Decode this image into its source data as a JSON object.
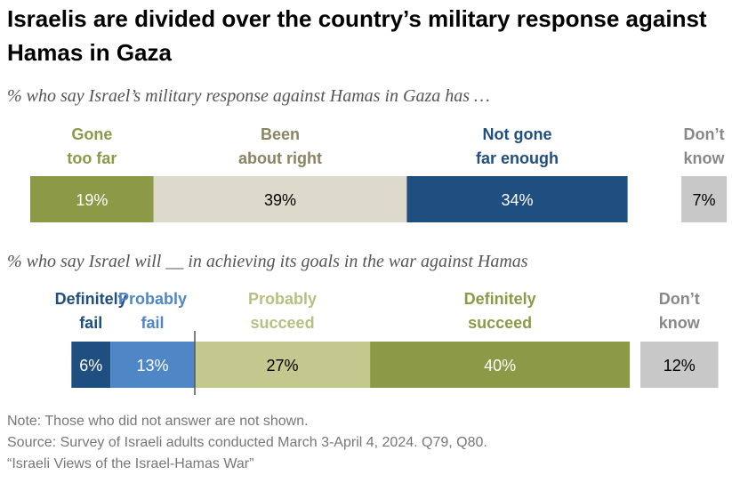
{
  "title": "Israelis are divided over the country’s military response against Hamas in Gaza",
  "notes": {
    "note": "Note: Those who did not answer are not shown.",
    "source": "Source: Survey of Israeli adults conducted March 3-April 4, 2024. Q79, Q80.",
    "report": "“Israeli Views of the Israel-Hamas War”"
  },
  "chart_data": [
    {
      "type": "bar",
      "orientation": "horizontal-stacked",
      "subtitle": "% who say Israel’s military response against Hamas in Gaza has …",
      "series": [
        {
          "name": "Gone too far",
          "label_lines": [
            "Gone",
            "too far"
          ],
          "value": 19,
          "display": "19%",
          "color": "#8c9a48",
          "label_color": "#8c9a48",
          "text_color": "#ffffff"
        },
        {
          "name": "Been about right",
          "label_lines": [
            "Been",
            "about right"
          ],
          "value": 39,
          "display": "39%",
          "color": "#ddd9cb",
          "label_color": "#8a8462",
          "text_color": "#000000"
        },
        {
          "name": "Not gone far enough",
          "label_lines": [
            "Not gone",
            "far enough"
          ],
          "value": 34,
          "display": "34%",
          "color": "#1f4e80",
          "label_color": "#1f4e80",
          "text_color": "#ffffff"
        }
      ],
      "separate": {
        "name": "Don’t know",
        "label_lines": [
          "Don’t",
          "know"
        ],
        "value": 7,
        "display": "7%",
        "color": "#c8c8c8",
        "label_color": "#888888",
        "text_color": "#000000"
      }
    },
    {
      "type": "bar",
      "orientation": "horizontal-diverging",
      "subtitle": "% who say Israel will __ in achieving its goals in the war against Hamas",
      "series": [
        {
          "name": "Definitely fail",
          "label_lines": [
            "Definitely",
            "fail"
          ],
          "value": 6,
          "display": "6%",
          "color": "#1f4e80",
          "label_color": "#1f4e80",
          "text_color": "#ffffff",
          "side": "negative"
        },
        {
          "name": "Probably fail",
          "label_lines": [
            "Probably",
            "fail"
          ],
          "value": 13,
          "display": "13%",
          "color": "#4f86c6",
          "label_color": "#4f86c6",
          "text_color": "#ffffff",
          "side": "negative"
        },
        {
          "name": "Probably succeed",
          "label_lines": [
            "Probably",
            "succeed"
          ],
          "value": 27,
          "display": "27%",
          "color": "#c3c88e",
          "label_color": "#b9bf80",
          "text_color": "#000000",
          "side": "positive"
        },
        {
          "name": "Definitely succeed",
          "label_lines": [
            "Definitely",
            "succeed"
          ],
          "value": 40,
          "display": "40%",
          "color": "#8c9a48",
          "label_color": "#8c9a48",
          "text_color": "#ffffff",
          "side": "positive"
        }
      ],
      "separate": {
        "name": "Don’t know",
        "label_lines": [
          "Don’t",
          "know"
        ],
        "value": 12,
        "display": "12%",
        "color": "#c8c8c8",
        "label_color": "#888888",
        "text_color": "#000000"
      }
    }
  ]
}
